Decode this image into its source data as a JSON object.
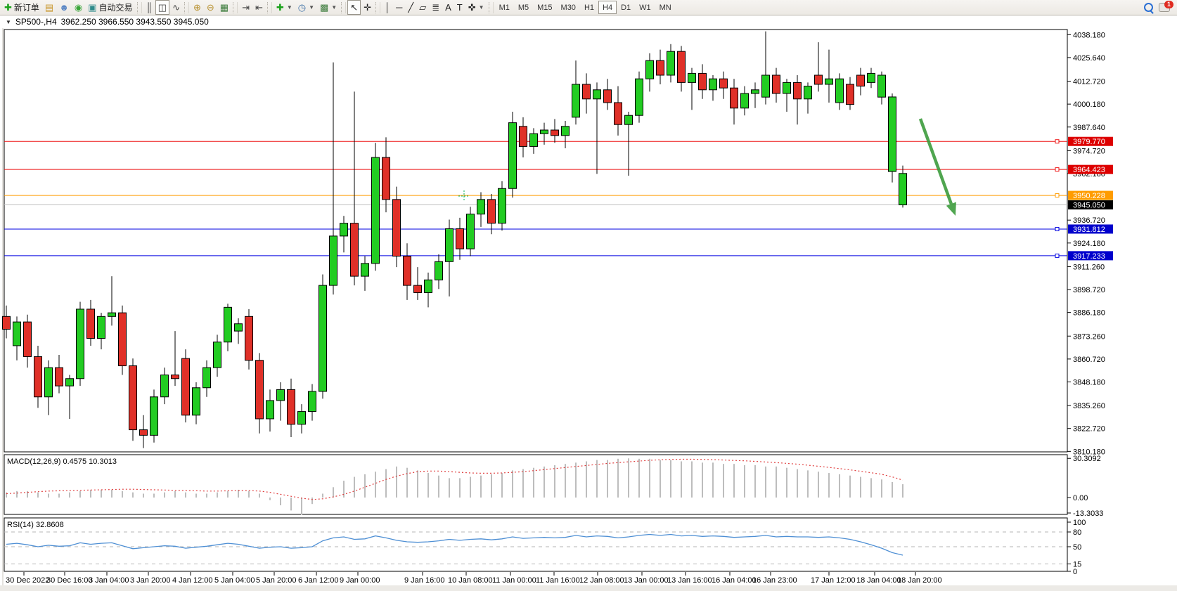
{
  "toolbar": {
    "new_order_label": "新订单",
    "autotrade_label": "自动交易",
    "notification_count": "1",
    "groups": [
      {
        "items": [
          {
            "name": "new-order-button",
            "glyph": "✚",
            "color": "#1ba11b",
            "label": "新订单"
          },
          {
            "name": "market-depth-button",
            "glyph": "▤",
            "color": "#c9962b"
          },
          {
            "name": "community-button",
            "glyph": "☻",
            "color": "#5b87c5"
          },
          {
            "name": "signals-button",
            "glyph": "◉",
            "color": "#3aa63a"
          },
          {
            "name": "autotrade-button",
            "glyph": "▣",
            "color": "#2e8b8b",
            "label": "自动交易"
          }
        ]
      },
      {
        "items": [
          {
            "name": "bar-chart-button",
            "glyph": "║",
            "color": "#444"
          },
          {
            "name": "candlestick-chart-button",
            "glyph": "◫",
            "color": "#444",
            "pressed": true
          },
          {
            "name": "line-chart-button",
            "glyph": "∿",
            "color": "#444"
          }
        ]
      },
      {
        "items": [
          {
            "name": "zoom-in-button",
            "glyph": "⊕",
            "color": "#b8912f"
          },
          {
            "name": "zoom-out-button",
            "glyph": "⊖",
            "color": "#b8912f"
          },
          {
            "name": "tile-windows-button",
            "glyph": "▦",
            "color": "#3a7a3a"
          }
        ]
      },
      {
        "items": [
          {
            "name": "auto-scroll-button",
            "glyph": "⇥",
            "color": "#444"
          },
          {
            "name": "chart-shift-button",
            "glyph": "⇤",
            "color": "#444"
          }
        ]
      },
      {
        "items": [
          {
            "name": "indicators-button",
            "glyph": "✚",
            "color": "#1ba11b",
            "dropdown": true
          },
          {
            "name": "periods-button",
            "glyph": "◷",
            "color": "#3a6ea5",
            "dropdown": true
          },
          {
            "name": "templates-button",
            "glyph": "▩",
            "color": "#3a7a3a",
            "dropdown": true
          }
        ]
      },
      {
        "items": [
          {
            "name": "cursor-button",
            "glyph": "↖",
            "color": "#222",
            "pressed": true
          },
          {
            "name": "crosshair-button",
            "glyph": "✛",
            "color": "#222"
          }
        ]
      },
      {
        "items": [
          {
            "name": "vertical-line-button",
            "glyph": "│",
            "color": "#222"
          },
          {
            "name": "horizontal-line-button",
            "glyph": "─",
            "color": "#222"
          },
          {
            "name": "trendline-button",
            "glyph": "╱",
            "color": "#222"
          },
          {
            "name": "equidistant-channel-button",
            "glyph": "▱",
            "color": "#222"
          },
          {
            "name": "fibonacci-button",
            "glyph": "≣",
            "color": "#222"
          },
          {
            "name": "text-button",
            "glyph": "A",
            "color": "#222"
          },
          {
            "name": "text-label-button",
            "glyph": "T",
            "color": "#222"
          },
          {
            "name": "arrows-button",
            "glyph": "✜",
            "color": "#222",
            "dropdown": true
          }
        ]
      }
    ],
    "timeframes": [
      "M1",
      "M5",
      "M15",
      "M30",
      "H1",
      "H4",
      "D1",
      "W1",
      "MN"
    ],
    "active_timeframe": "H4"
  },
  "chart": {
    "symbol_period": "SP500-,H4",
    "ohlc_line": "3962.250 3966.550 3943.550 3945.050",
    "dropdown_triangle": "▼"
  },
  "price_axis": {
    "ticks": [
      "4038.180",
      "4025.640",
      "4012.720",
      "4000.180",
      "3987.640",
      "3974.720",
      "3962.180",
      "3936.720",
      "3924.180",
      "3911.260",
      "3898.720",
      "3886.180",
      "3873.260",
      "3860.720",
      "3848.180",
      "3835.260",
      "3822.720",
      "3810.180"
    ],
    "tick_values": [
      4038.18,
      4025.64,
      4012.72,
      4000.18,
      3987.64,
      3974.72,
      3962.18,
      3936.72,
      3924.18,
      3911.26,
      3898.72,
      3886.18,
      3873.26,
      3860.72,
      3848.18,
      3835.26,
      3822.72,
      3810.18
    ],
    "current_price_label": "3945.050",
    "current_price_value": 3945.05
  },
  "hlines": [
    {
      "label": "3979.770",
      "value": 3979.77,
      "color": "#ee1111",
      "badge": "#dd0000"
    },
    {
      "label": "3964.423",
      "value": 3964.423,
      "color": "#ee1111",
      "badge": "#dd0000"
    },
    {
      "label": "3950.228",
      "value": 3950.228,
      "color": "#ff9c00",
      "badge": "#ff9c00"
    },
    {
      "label": "3931.812",
      "value": 3931.812,
      "color": "#0000e0",
      "badge": "#0000cc"
    },
    {
      "label": "3917.233",
      "value": 3917.233,
      "color": "#0000e0",
      "badge": "#0000cc"
    }
  ],
  "indicators": {
    "macd": {
      "label_name": "MACD(12,26,9)",
      "label_values": "0.4575 10.3013",
      "axis": [
        "30.3092",
        "0.00",
        "-13.3033"
      ],
      "axis_values": [
        30.3092,
        0.0,
        -13.3033
      ]
    },
    "rsi": {
      "label_name": "RSI(14)",
      "label_value": "32.8608",
      "axis": [
        "100",
        "80",
        "50",
        "15",
        "0"
      ],
      "axis_values": [
        100,
        80,
        50,
        15,
        0
      ],
      "levels": [
        80,
        50,
        15
      ]
    }
  },
  "time_axis": {
    "labels": [
      "30 Dec 2022",
      "30 Dec 16:00",
      "3 Jan 04:00",
      "3 Jan 20:00",
      "4 Jan 12:00",
      "5 Jan 04:00",
      "5 Jan 20:00",
      "6 Jan 12:00",
      "9 Jan 00:00",
      "9 Jan 16:00",
      "10 Jan 08:00",
      "11 Jan 00:00",
      "11 Jan 16:00",
      "12 Jan 08:00",
      "13 Jan 00:00",
      "13 Jan 16:00",
      "16 Jan 04:00",
      "16 Jan 23:00",
      "17 Jan 12:00",
      "18 Jan 04:00",
      "18 Jan 20:00"
    ]
  },
  "chart_data": {
    "type": "candlestick",
    "symbol": "SP500-",
    "timeframe": "H4",
    "last_candle": {
      "open": 3962.25,
      "high": 3966.55,
      "low": 3943.55,
      "close": 3945.05
    },
    "price_range": [
      3810.18,
      4038.18
    ],
    "candles_ohlc": [
      [
        3884,
        3890,
        3872,
        3877
      ],
      [
        3868,
        3884,
        3860,
        3881
      ],
      [
        3881,
        3885,
        3856,
        3862
      ],
      [
        3862,
        3868,
        3834,
        3840
      ],
      [
        3840,
        3860,
        3830,
        3856
      ],
      [
        3856,
        3863,
        3842,
        3846
      ],
      [
        3846,
        3852,
        3828,
        3850
      ],
      [
        3850,
        3892,
        3846,
        3888
      ],
      [
        3888,
        3893,
        3868,
        3872
      ],
      [
        3872,
        3886,
        3866,
        3884
      ],
      [
        3884,
        3906,
        3879,
        3886
      ],
      [
        3886,
        3890,
        3852,
        3857
      ],
      [
        3857,
        3861,
        3816,
        3822
      ],
      [
        3822,
        3830,
        3812,
        3819
      ],
      [
        3819,
        3844,
        3815,
        3840
      ],
      [
        3840,
        3856,
        3836,
        3852
      ],
      [
        3852,
        3876,
        3846,
        3850
      ],
      [
        3861,
        3866,
        3826,
        3830
      ],
      [
        3830,
        3848,
        3825,
        3845
      ],
      [
        3845,
        3860,
        3840,
        3856
      ],
      [
        3856,
        3874,
        3851,
        3870
      ],
      [
        3870,
        3891,
        3865,
        3889
      ],
      [
        3876,
        3883,
        3869,
        3880
      ],
      [
        3884,
        3888,
        3855,
        3860
      ],
      [
        3860,
        3864,
        3820,
        3828
      ],
      [
        3828,
        3844,
        3821,
        3838
      ],
      [
        3838,
        3848,
        3827,
        3844
      ],
      [
        3844,
        3850,
        3818,
        3825
      ],
      [
        3825,
        3836,
        3820,
        3832
      ],
      [
        3832,
        3847,
        3827,
        3843
      ],
      [
        3843,
        3907,
        3839,
        3901
      ],
      [
        3901,
        4023,
        3896,
        3928
      ],
      [
        3928,
        3939,
        3919,
        3935
      ],
      [
        3935,
        4007,
        3901,
        3906
      ],
      [
        3906,
        3917,
        3898,
        3913
      ],
      [
        3913,
        3979,
        3909,
        3971
      ],
      [
        3971,
        3982,
        3941,
        3948
      ],
      [
        3948,
        3955,
        3911,
        3917
      ],
      [
        3917,
        3924,
        3893,
        3901
      ],
      [
        3901,
        3911,
        3893,
        3897
      ],
      [
        3897,
        3908,
        3889,
        3904
      ],
      [
        3904,
        3918,
        3899,
        3914
      ],
      [
        3914,
        3937,
        3895,
        3932
      ],
      [
        3932,
        3938,
        3915,
        3921
      ],
      [
        3921,
        3944,
        3917,
        3940
      ],
      [
        3940,
        3952,
        3933,
        3948
      ],
      [
        3948,
        3951,
        3929,
        3935
      ],
      [
        3935,
        3958,
        3931,
        3954
      ],
      [
        3954,
        3996,
        3949,
        3990
      ],
      [
        3988,
        3993,
        3971,
        3977
      ],
      [
        3977,
        3987,
        3973,
        3984
      ],
      [
        3984,
        3990,
        3978,
        3986
      ],
      [
        3986,
        3992,
        3979,
        3983
      ],
      [
        3983,
        3991,
        3976,
        3988
      ],
      [
        3993,
        4024,
        3989,
        4011
      ],
      [
        4011,
        4017,
        3995,
        4003
      ],
      [
        4003,
        4012,
        3962,
        4008
      ],
      [
        4008,
        4014,
        3997,
        4001
      ],
      [
        4001,
        4010,
        3983,
        3989
      ],
      [
        3989,
        3996,
        3961,
        3994
      ],
      [
        3994,
        4018,
        3990,
        4014
      ],
      [
        4014,
        4028,
        4007,
        4024
      ],
      [
        4024,
        4030,
        4011,
        4016
      ],
      [
        4016,
        4033,
        4012,
        4029
      ],
      [
        4029,
        4032,
        4007,
        4012
      ],
      [
        4012,
        4020,
        3997,
        4017
      ],
      [
        4017,
        4022,
        4003,
        4008
      ],
      [
        4008,
        4016,
        4002,
        4014
      ],
      [
        4014,
        4018,
        4003,
        4009
      ],
      [
        4009,
        4014,
        3989,
        3998
      ],
      [
        3998,
        4010,
        3994,
        4006
      ],
      [
        4006,
        4012,
        3998,
        4008
      ],
      [
        4004,
        4040,
        4000,
        4016
      ],
      [
        4016,
        4020,
        4001,
        4006
      ],
      [
        4006,
        4014,
        3996,
        4012
      ],
      [
        4012,
        4016,
        3989,
        4003
      ],
      [
        4003,
        4012,
        3995,
        4010
      ],
      [
        4016,
        4034,
        4007,
        4011
      ],
      [
        4011,
        4030,
        4001,
        4014
      ],
      [
        4001,
        4017,
        3997,
        4014
      ],
      [
        4011,
        4015,
        3997,
        4000
      ],
      [
        4016,
        4020,
        4005,
        4010
      ],
      [
        4012,
        4020,
        4009,
        4017
      ],
      [
        4004,
        4018,
        4000,
        4016
      ],
      [
        4004.1,
        4006,
        3957.3,
        3963.3
      ],
      [
        3962.25,
        3966.55,
        3943.55,
        3945.05
      ]
    ],
    "force_bull_indices": [
      84,
      85
    ],
    "macd_histogram": [
      4,
      5,
      5,
      4,
      3,
      3,
      4,
      5,
      6,
      6,
      6,
      5,
      4,
      3,
      3,
      4,
      5,
      4,
      3,
      3,
      4,
      5,
      6,
      5,
      3,
      -2,
      -6,
      -10,
      -13.3,
      -5,
      3,
      8,
      13,
      16,
      18,
      20,
      22,
      24,
      23,
      21,
      19,
      17,
      15,
      15,
      16,
      17,
      18,
      19,
      21,
      22,
      23,
      24,
      25,
      26,
      27,
      28,
      29,
      29,
      30,
      30.3,
      30,
      30,
      29,
      29,
      28,
      28,
      27,
      27,
      26,
      26,
      25,
      25,
      24,
      24,
      23,
      22,
      21,
      20,
      19,
      18,
      17,
      16,
      15,
      14,
      12,
      10.3
    ],
    "macd_signal": [
      3,
      3.5,
      4,
      4.5,
      5,
      5.2,
      5.4,
      5.6,
      5.8,
      6,
      6.2,
      6.4,
      6.4,
      6.2,
      6,
      5.8,
      5.6,
      5.4,
      5.2,
      5,
      5,
      5.2,
      5.4,
      5.4,
      5,
      4,
      2.5,
      1,
      -0.5,
      -1.5,
      -1,
      0.5,
      2.5,
      5,
      8,
      11,
      14,
      16.5,
      18.5,
      20,
      20.5,
      20.5,
      20,
      19.5,
      19,
      18.8,
      18.8,
      19,
      19.5,
      20,
      20.8,
      21.6,
      22.4,
      23.2,
      24,
      24.8,
      25.6,
      26.4,
      27,
      27.6,
      28.2,
      28.8,
      29.2,
      29.5,
      29.6,
      29.6,
      29.5,
      29.3,
      29,
      28.7,
      28.4,
      28,
      27.5,
      27,
      26.4,
      25.8,
      25,
      24.2,
      23.3,
      22.4,
      21.4,
      20.3,
      19.2,
      18,
      16,
      13.5
    ],
    "rsi_values": [
      55,
      57,
      54,
      50,
      53,
      51,
      52,
      58,
      55,
      57,
      58,
      52,
      46,
      48,
      50,
      52,
      51,
      47,
      49,
      51,
      54,
      57,
      55,
      51,
      47,
      49,
      50,
      47,
      48,
      50,
      62,
      68,
      70,
      65,
      66,
      72,
      68,
      63,
      60,
      59,
      60,
      62,
      65,
      63,
      65,
      66,
      64,
      66,
      70,
      67,
      68,
      69,
      68,
      69,
      73,
      70,
      72,
      71,
      68,
      70,
      73,
      75,
      73,
      75,
      72,
      73,
      71,
      72,
      71,
      69,
      70,
      71,
      73,
      70,
      71,
      70,
      70,
      69,
      70,
      68,
      65,
      60,
      54,
      47,
      38,
      32.86
    ],
    "annotations": [
      {
        "type": "arrow",
        "direction": "down-right",
        "color": "#3d9c3d",
        "from_price": 3992,
        "to_price": 3939
      },
      {
        "type": "cross-marker",
        "color": "#00b050",
        "price": 3950
      }
    ],
    "colors": {
      "bull": "#22cc22",
      "bear": "#e03028",
      "wick": "#000000",
      "macd_hist": "#bdbdbd",
      "macd_signal": "#e04040",
      "rsi_line": "#4e8fd4"
    }
  }
}
